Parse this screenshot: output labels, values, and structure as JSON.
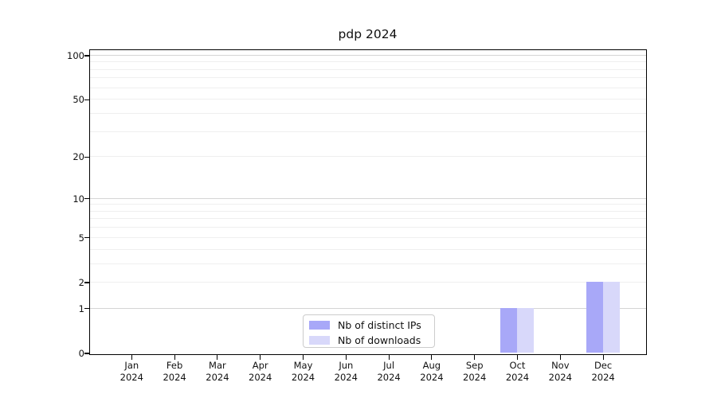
{
  "chart_data": {
    "type": "bar",
    "title": "pdp 2024",
    "months": [
      "Jan",
      "Feb",
      "Mar",
      "Apr",
      "May",
      "Jun",
      "Jul",
      "Aug",
      "Sep",
      "Oct",
      "Nov",
      "Dec"
    ],
    "year": "2024",
    "series": [
      {
        "name": "Nb of distinct IPs",
        "color": "#a8a8f8",
        "values": [
          0,
          0,
          0,
          0,
          0,
          0,
          0,
          0,
          0,
          1,
          0,
          2
        ]
      },
      {
        "name": "Nb of downloads",
        "color": "#d8d8fa",
        "values": [
          0,
          0,
          0,
          0,
          0,
          0,
          0,
          0,
          0,
          1,
          0,
          2
        ]
      }
    ],
    "y_axis": {
      "scale": "log1p",
      "ticks": [
        0,
        1,
        2,
        5,
        10,
        20,
        50,
        100
      ],
      "major_gridlines": [
        1,
        10,
        100
      ],
      "minor_gridlines": [
        2,
        3,
        4,
        5,
        6,
        7,
        8,
        9,
        20,
        30,
        40,
        50,
        60,
        70,
        80,
        90
      ],
      "max": 109
    },
    "legend": {
      "position": "bottom-center"
    },
    "colors": {
      "major_grid": "#d5d5d5",
      "minor_grid": "#efefef",
      "spine": "#000000",
      "legend_border": "#cccccc",
      "background": "#ffffff"
    }
  }
}
